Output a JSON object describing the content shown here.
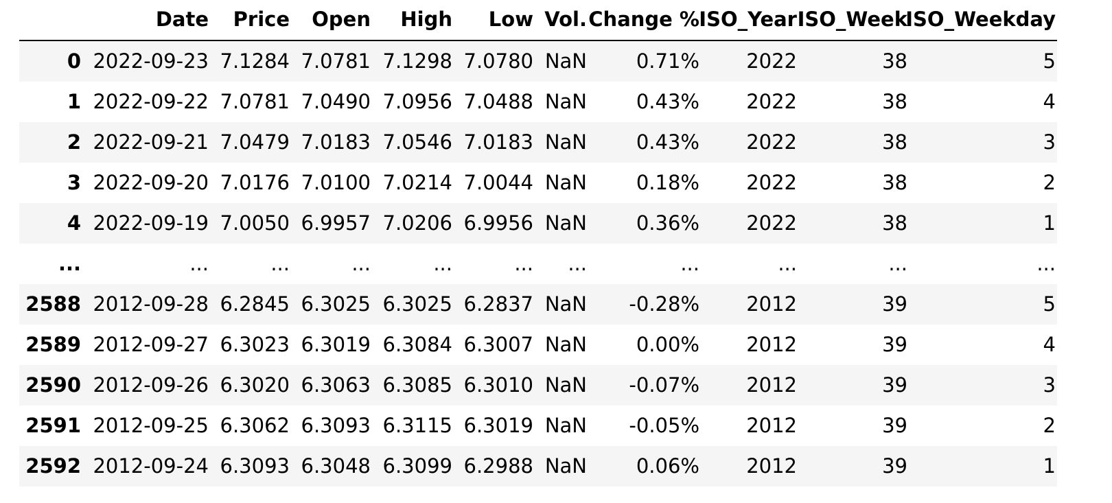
{
  "table": {
    "columns": [
      "Date",
      "Price",
      "Open",
      "High",
      "Low",
      "Vol.",
      "Change %",
      "ISO_Year",
      "ISO_Week",
      "ISO_Weekday"
    ],
    "rows": [
      {
        "index": "0",
        "cells": [
          "2022-09-23",
          "7.1284",
          "7.0781",
          "7.1298",
          "7.0780",
          "NaN",
          "0.71%",
          "2022",
          "38",
          "5"
        ]
      },
      {
        "index": "1",
        "cells": [
          "2022-09-22",
          "7.0781",
          "7.0490",
          "7.0956",
          "7.0488",
          "NaN",
          "0.43%",
          "2022",
          "38",
          "4"
        ]
      },
      {
        "index": "2",
        "cells": [
          "2022-09-21",
          "7.0479",
          "7.0183",
          "7.0546",
          "7.0183",
          "NaN",
          "0.43%",
          "2022",
          "38",
          "3"
        ]
      },
      {
        "index": "3",
        "cells": [
          "2022-09-20",
          "7.0176",
          "7.0100",
          "7.0214",
          "7.0044",
          "NaN",
          "0.18%",
          "2022",
          "38",
          "2"
        ]
      },
      {
        "index": "4",
        "cells": [
          "2022-09-19",
          "7.0050",
          "6.9957",
          "7.0206",
          "6.9956",
          "NaN",
          "0.36%",
          "2022",
          "38",
          "1"
        ]
      },
      {
        "index": "...",
        "cells": [
          "...",
          "...",
          "...",
          "...",
          "...",
          "...",
          "...",
          "...",
          "...",
          "..."
        ]
      },
      {
        "index": "2588",
        "cells": [
          "2012-09-28",
          "6.2845",
          "6.3025",
          "6.3025",
          "6.2837",
          "NaN",
          "-0.28%",
          "2012",
          "39",
          "5"
        ]
      },
      {
        "index": "2589",
        "cells": [
          "2012-09-27",
          "6.3023",
          "6.3019",
          "6.3084",
          "6.3007",
          "NaN",
          "0.00%",
          "2012",
          "39",
          "4"
        ]
      },
      {
        "index": "2590",
        "cells": [
          "2012-09-26",
          "6.3020",
          "6.3063",
          "6.3085",
          "6.3010",
          "NaN",
          "-0.07%",
          "2012",
          "39",
          "3"
        ]
      },
      {
        "index": "2591",
        "cells": [
          "2012-09-25",
          "6.3062",
          "6.3093",
          "6.3115",
          "6.3019",
          "NaN",
          "-0.05%",
          "2012",
          "39",
          "2"
        ]
      },
      {
        "index": "2592",
        "cells": [
          "2012-09-24",
          "6.3093",
          "6.3048",
          "6.3099",
          "6.2988",
          "NaN",
          "0.06%",
          "2012",
          "39",
          "1"
        ]
      }
    ]
  }
}
